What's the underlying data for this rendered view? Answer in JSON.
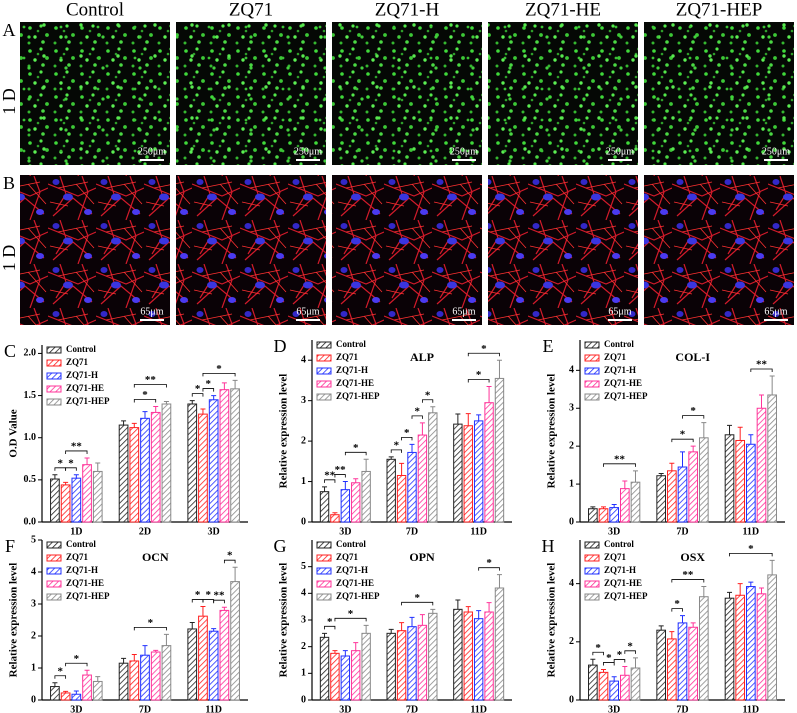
{
  "images": {
    "column_headers": [
      "Control",
      "ZQ71",
      "ZQ71-H",
      "ZQ71-HE",
      "ZQ71-HEP"
    ],
    "rows": [
      {
        "label": "A",
        "day": "1 D",
        "scale_bar": "250μm"
      },
      {
        "label": "B",
        "day": "1 D",
        "scale_bar": "65μm"
      }
    ]
  },
  "chart_data": [
    {
      "type": "bar",
      "panel": "C",
      "y_label": "O.D Value",
      "categories": [
        "1D",
        "2D",
        "3D"
      ],
      "ylim": [
        0,
        2.1
      ],
      "yticks": [
        {
          "value": 0,
          "label": "0.0"
        },
        0.5,
        {
          "value": 1,
          "label": "1.0"
        },
        1.5,
        {
          "value": 2,
          "label": "2.0"
        }
      ],
      "series": [
        {
          "name": "Control",
          "color": "#222222",
          "values": [
            0.51,
            1.15,
            1.4
          ],
          "errors": [
            0.05,
            0.05,
            0.04
          ]
        },
        {
          "name": "ZQ71",
          "color": "#ff2020",
          "values": [
            0.44,
            1.12,
            1.28
          ],
          "errors": [
            0.03,
            0.05,
            0.06
          ]
        },
        {
          "name": "ZQ71-H",
          "color": "#2030ff",
          "values": [
            0.52,
            1.23,
            1.45
          ],
          "errors": [
            0.04,
            0.08,
            0.05
          ]
        },
        {
          "name": "ZQ71-HE",
          "color": "#ff3399",
          "values": [
            0.68,
            1.3,
            1.57
          ],
          "errors": [
            0.08,
            0.07,
            0.08
          ]
        },
        {
          "name": "ZQ71-HEP",
          "color": "#888888",
          "values": [
            0.6,
            1.4,
            1.58
          ],
          "errors": [
            0.1,
            0.03,
            0.1
          ]
        }
      ],
      "significance": [
        {
          "category": 0,
          "pair": [
            0,
            1
          ],
          "label": "*"
        },
        {
          "category": 0,
          "pair": [
            1,
            2
          ],
          "label": "*"
        },
        {
          "category": 0,
          "pair": [
            1,
            3
          ],
          "label": "**"
        },
        {
          "category": 1,
          "pair": [
            1,
            3
          ],
          "label": "*"
        },
        {
          "category": 1,
          "pair": [
            1,
            4
          ],
          "label": "**"
        },
        {
          "category": 2,
          "pair": [
            0,
            1
          ],
          "label": "*"
        },
        {
          "category": 2,
          "pair": [
            1,
            2
          ],
          "label": "*"
        },
        {
          "category": 2,
          "pair": [
            1,
            4
          ],
          "label": "*"
        }
      ]
    },
    {
      "type": "bar",
      "panel": "D",
      "title": "ALP",
      "y_label": "Relative expression level",
      "categories": [
        "3D",
        "7D",
        "11D"
      ],
      "ylim": [
        0,
        4.5
      ],
      "yticks": [
        0,
        1,
        2,
        3,
        4
      ],
      "series": [
        {
          "name": "Control",
          "color": "#222222",
          "values": [
            0.75,
            1.55,
            2.42
          ],
          "errors": [
            0.12,
            0.06,
            0.25
          ]
        },
        {
          "name": "ZQ71",
          "color": "#ff2020",
          "values": [
            0.18,
            1.15,
            2.38
          ],
          "errors": [
            0.05,
            0.3,
            0.3
          ]
        },
        {
          "name": "ZQ71-H",
          "color": "#2030ff",
          "values": [
            0.8,
            1.72,
            2.5
          ],
          "errors": [
            0.2,
            0.2,
            0.15
          ]
        },
        {
          "name": "ZQ71-HE",
          "color": "#ff3399",
          "values": [
            0.97,
            2.15,
            2.95
          ],
          "errors": [
            0.1,
            0.3,
            0.4
          ]
        },
        {
          "name": "ZQ71-HEP",
          "color": "#888888",
          "values": [
            1.25,
            2.7,
            3.55
          ],
          "errors": [
            0.3,
            0.15,
            0.45
          ]
        }
      ],
      "significance": [
        {
          "category": 0,
          "pair": [
            0,
            1
          ],
          "label": "**"
        },
        {
          "category": 0,
          "pair": [
            1,
            2
          ],
          "label": "**"
        },
        {
          "category": 0,
          "pair": [
            2,
            4
          ],
          "label": "*"
        },
        {
          "category": 1,
          "pair": [
            0,
            1
          ],
          "label": "*"
        },
        {
          "category": 1,
          "pair": [
            1,
            2
          ],
          "label": "*"
        },
        {
          "category": 1,
          "pair": [
            2,
            3
          ],
          "label": "*"
        },
        {
          "category": 1,
          "pair": [
            3,
            4
          ],
          "label": "*"
        },
        {
          "category": 2,
          "pair": [
            1,
            3
          ],
          "label": "*"
        },
        {
          "category": 2,
          "pair": [
            1,
            4
          ],
          "label": "*"
        }
      ]
    },
    {
      "type": "bar",
      "panel": "E",
      "title": "COL-I",
      "y_label": "Relative expression level",
      "categories": [
        "3D",
        "7D",
        "11D"
      ],
      "ylim": [
        0,
        4.8
      ],
      "yticks": [
        0,
        1,
        2,
        3,
        4
      ],
      "series": [
        {
          "name": "Control",
          "color": "#222222",
          "values": [
            0.35,
            1.22,
            2.3
          ],
          "errors": [
            0.05,
            0.06,
            0.25
          ]
        },
        {
          "name": "ZQ71",
          "color": "#ff2020",
          "values": [
            0.35,
            1.35,
            2.15
          ],
          "errors": [
            0.05,
            0.2,
            0.35
          ]
        },
        {
          "name": "ZQ71-H",
          "color": "#2030ff",
          "values": [
            0.38,
            1.45,
            2.05
          ],
          "errors": [
            0.08,
            0.4,
            0.25
          ]
        },
        {
          "name": "ZQ71-HE",
          "color": "#ff3399",
          "values": [
            0.88,
            1.85,
            3.0
          ],
          "errors": [
            0.2,
            0.15,
            0.35
          ]
        },
        {
          "name": "ZQ71-HEP",
          "color": "#888888",
          "values": [
            1.05,
            2.22,
            3.35
          ],
          "errors": [
            0.3,
            0.4,
            0.5
          ]
        }
      ],
      "significance": [
        {
          "category": 0,
          "pair": [
            1,
            4
          ],
          "label": "**"
        },
        {
          "category": 1,
          "pair": [
            1,
            3
          ],
          "label": "*"
        },
        {
          "category": 1,
          "pair": [
            2,
            4
          ],
          "label": "*"
        },
        {
          "category": 2,
          "pair": [
            2,
            4
          ],
          "label": "**"
        }
      ]
    },
    {
      "type": "bar",
      "panel": "F",
      "title": "OCN",
      "y_label": "Relative expression level",
      "categories": [
        "3D",
        "7D",
        "11D"
      ],
      "ylim": [
        0,
        5
      ],
      "yticks": [
        0,
        1,
        2,
        3,
        4,
        5
      ],
      "series": [
        {
          "name": "Control",
          "color": "#222222",
          "values": [
            0.42,
            1.15,
            2.22
          ],
          "errors": [
            0.12,
            0.15,
            0.2
          ]
        },
        {
          "name": "ZQ71",
          "color": "#ff2020",
          "values": [
            0.22,
            1.22,
            2.62
          ],
          "errors": [
            0.05,
            0.2,
            0.3
          ]
        },
        {
          "name": "ZQ71-H",
          "color": "#2030ff",
          "values": [
            0.18,
            1.4,
            2.15
          ],
          "errors": [
            0.1,
            0.3,
            0.08
          ]
        },
        {
          "name": "ZQ71-HE",
          "color": "#ff3399",
          "values": [
            0.78,
            1.5,
            2.8
          ],
          "errors": [
            0.15,
            0.05,
            0.1
          ]
        },
        {
          "name": "ZQ71-HEP",
          "color": "#888888",
          "values": [
            0.58,
            1.7,
            3.7
          ],
          "errors": [
            0.15,
            0.35,
            0.45
          ]
        }
      ],
      "significance": [
        {
          "category": 0,
          "pair": [
            0,
            1
          ],
          "label": "*"
        },
        {
          "category": 0,
          "pair": [
            1,
            3
          ],
          "label": "*"
        },
        {
          "category": 1,
          "pair": [
            1,
            4
          ],
          "label": "*"
        },
        {
          "category": 2,
          "pair": [
            0,
            1
          ],
          "label": "*"
        },
        {
          "category": 2,
          "pair": [
            1,
            2
          ],
          "label": "*"
        },
        {
          "category": 2,
          "pair": [
            2,
            3
          ],
          "label": "**"
        },
        {
          "category": 2,
          "pair": [
            3,
            4
          ],
          "label": "*"
        }
      ]
    },
    {
      "type": "bar",
      "panel": "G",
      "title": "OPN",
      "y_label": "Relative expression level",
      "categories": [
        "3D",
        "7D",
        "11D"
      ],
      "ylim": [
        0,
        6
      ],
      "yticks": [
        0,
        1,
        2,
        3,
        4,
        5
      ],
      "series": [
        {
          "name": "Control",
          "color": "#222222",
          "values": [
            2.35,
            2.5,
            3.4
          ],
          "errors": [
            0.15,
            0.15,
            0.35
          ]
        },
        {
          "name": "ZQ71",
          "color": "#ff2020",
          "values": [
            1.75,
            2.6,
            3.3
          ],
          "errors": [
            0.1,
            0.3,
            0.2
          ]
        },
        {
          "name": "ZQ71-H",
          "color": "#2030ff",
          "values": [
            1.65,
            2.75,
            3.05
          ],
          "errors": [
            0.2,
            0.35,
            0.3
          ]
        },
        {
          "name": "ZQ71-HE",
          "color": "#ff3399",
          "values": [
            1.85,
            2.8,
            3.3
          ],
          "errors": [
            0.3,
            0.4,
            0.35
          ]
        },
        {
          "name": "ZQ71-HEP",
          "color": "#888888",
          "values": [
            2.5,
            3.25,
            4.2
          ],
          "errors": [
            0.3,
            0.15,
            0.5
          ]
        }
      ],
      "significance": [
        {
          "category": 0,
          "pair": [
            0,
            1
          ],
          "label": "*"
        },
        {
          "category": 0,
          "pair": [
            1,
            4
          ],
          "label": "*"
        },
        {
          "category": 1,
          "pair": [
            1,
            4
          ],
          "label": "*"
        },
        {
          "category": 2,
          "pair": [
            2,
            4
          ],
          "label": "*"
        }
      ]
    },
    {
      "type": "bar",
      "panel": "H",
      "title": "OSX",
      "y_label": "Relative expression level",
      "categories": [
        "3D",
        "7D",
        "11D"
      ],
      "ylim": [
        0,
        5.5
      ],
      "yticks": [
        0,
        2,
        4
      ],
      "series": [
        {
          "name": "Control",
          "color": "#222222",
          "values": [
            1.2,
            2.4,
            3.5
          ],
          "errors": [
            0.2,
            0.15,
            0.2
          ]
        },
        {
          "name": "ZQ71",
          "color": "#ff2020",
          "values": [
            0.95,
            2.1,
            3.6
          ],
          "errors": [
            0.1,
            0.25,
            0.4
          ]
        },
        {
          "name": "ZQ71-H",
          "color": "#2030ff",
          "values": [
            0.65,
            2.65,
            3.9
          ],
          "errors": [
            0.15,
            0.25,
            0.15
          ]
        },
        {
          "name": "ZQ71-HE",
          "color": "#ff3399",
          "values": [
            0.85,
            2.5,
            3.65
          ],
          "errors": [
            0.3,
            0.15,
            0.2
          ]
        },
        {
          "name": "ZQ71-HEP",
          "color": "#888888",
          "values": [
            1.1,
            3.55,
            4.3
          ],
          "errors": [
            0.35,
            0.35,
            0.5
          ]
        }
      ],
      "significance": [
        {
          "category": 0,
          "pair": [
            0,
            1
          ],
          "label": "*"
        },
        {
          "category": 0,
          "pair": [
            1,
            2
          ],
          "label": "*"
        },
        {
          "category": 0,
          "pair": [
            2,
            3
          ],
          "label": "*"
        },
        {
          "category": 0,
          "pair": [
            3,
            4
          ],
          "label": "*"
        },
        {
          "category": 1,
          "pair": [
            1,
            2
          ],
          "label": "*"
        },
        {
          "category": 1,
          "pair": [
            1,
            4
          ],
          "label": "**"
        },
        {
          "category": 2,
          "pair": [
            0,
            4
          ],
          "label": "*"
        }
      ]
    }
  ]
}
